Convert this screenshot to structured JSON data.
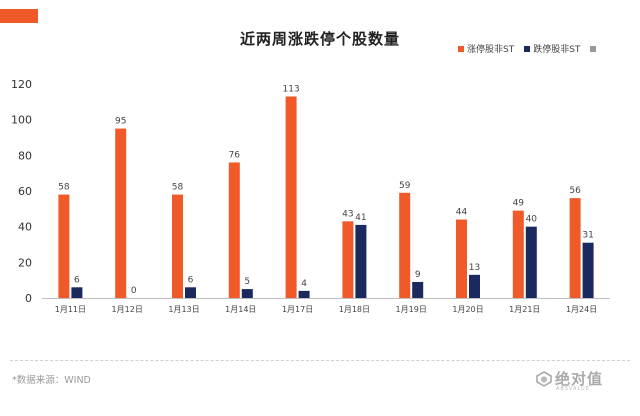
{
  "chart_data": {
    "type": "bar",
    "title": "近两周涨跌停个股数量",
    "categories": [
      "1月11日",
      "1月12日",
      "1月13日",
      "1月14日",
      "1月17日",
      "1月18日",
      "1月19日",
      "1月20日",
      "1月21日",
      "1月24日"
    ],
    "series": [
      {
        "name": "涨停股非ST",
        "color": "#F05A28",
        "values": [
          58,
          95,
          58,
          76,
          113,
          43,
          59,
          44,
          49,
          56
        ]
      },
      {
        "name": "跌停股非ST",
        "color": "#1B2A5E",
        "values": [
          6,
          0,
          6,
          5,
          4,
          41,
          9,
          13,
          40,
          31
        ]
      }
    ],
    "extra_legend_color": "#999999",
    "ylim": [
      0,
      120
    ],
    "yticks": [
      0,
      20,
      40,
      60,
      80,
      100,
      120
    ],
    "xlabel": "",
    "ylabel": "",
    "grid": false,
    "legend": "top-right"
  },
  "footer": {
    "source": "*数据来源：WIND",
    "watermark": "绝对值",
    "watermark_sub": "ABSVALUE"
  }
}
